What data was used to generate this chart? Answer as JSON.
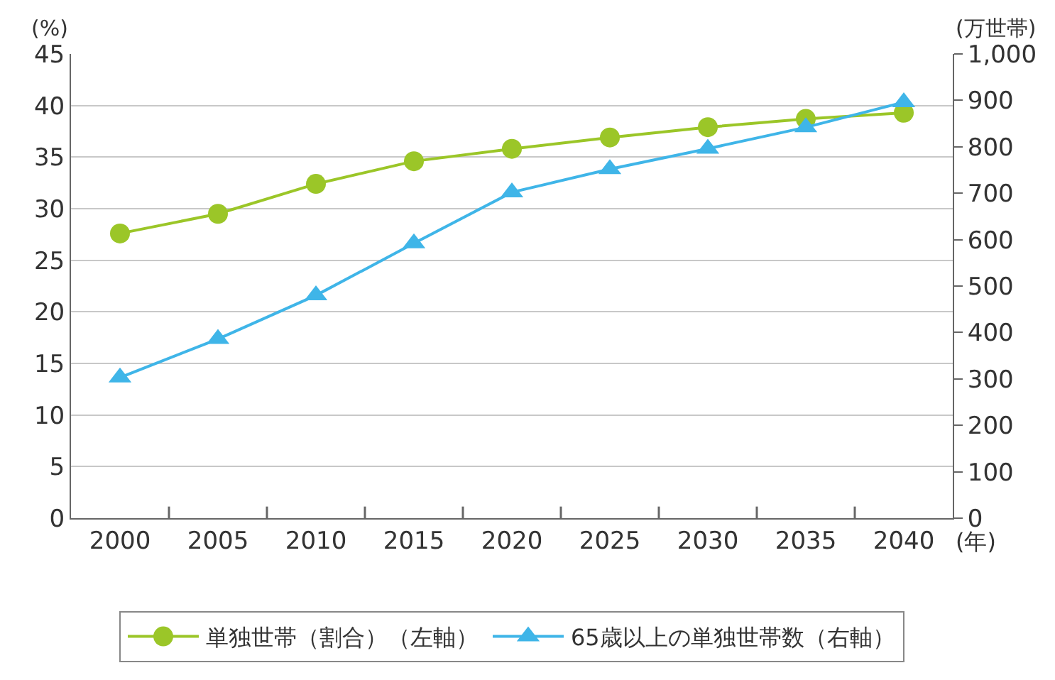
{
  "chart_data": {
    "type": "line",
    "categories": [
      "2000",
      "2005",
      "2010",
      "2015",
      "2020",
      "2025",
      "2030",
      "2035",
      "2040"
    ],
    "xlabel": "(年)",
    "ylabel": "(%)",
    "y2label": "(万世帯)",
    "series": [
      {
        "name": "単独世帯（割合）（左軸）",
        "color": "#9bc628",
        "marker": "circle",
        "values": [
          27.6,
          29.5,
          32.4,
          34.6,
          35.8,
          36.9,
          37.9,
          38.7,
          39.3
        ]
      },
      {
        "name": "65歳以上の単独世帯数（右軸）",
        "color": "#3fb5e8",
        "marker": "triangle",
        "axis": "y2",
        "values": [
          303,
          386,
          480,
          592,
          702,
          752,
          796,
          842,
          896
        ]
      }
    ],
    "ylim": [
      0,
      45
    ],
    "yticks": [
      0,
      5,
      10,
      15,
      20,
      25,
      30,
      35,
      40,
      45
    ],
    "y2lim": [
      0,
      1000
    ],
    "y2ticks": [
      0,
      100,
      200,
      300,
      400,
      500,
      600,
      700,
      800,
      900,
      {
        "value": 1000,
        "label": "1,000"
      }
    ],
    "grid": "y",
    "legend": "bottom",
    "line_style": "solid"
  }
}
